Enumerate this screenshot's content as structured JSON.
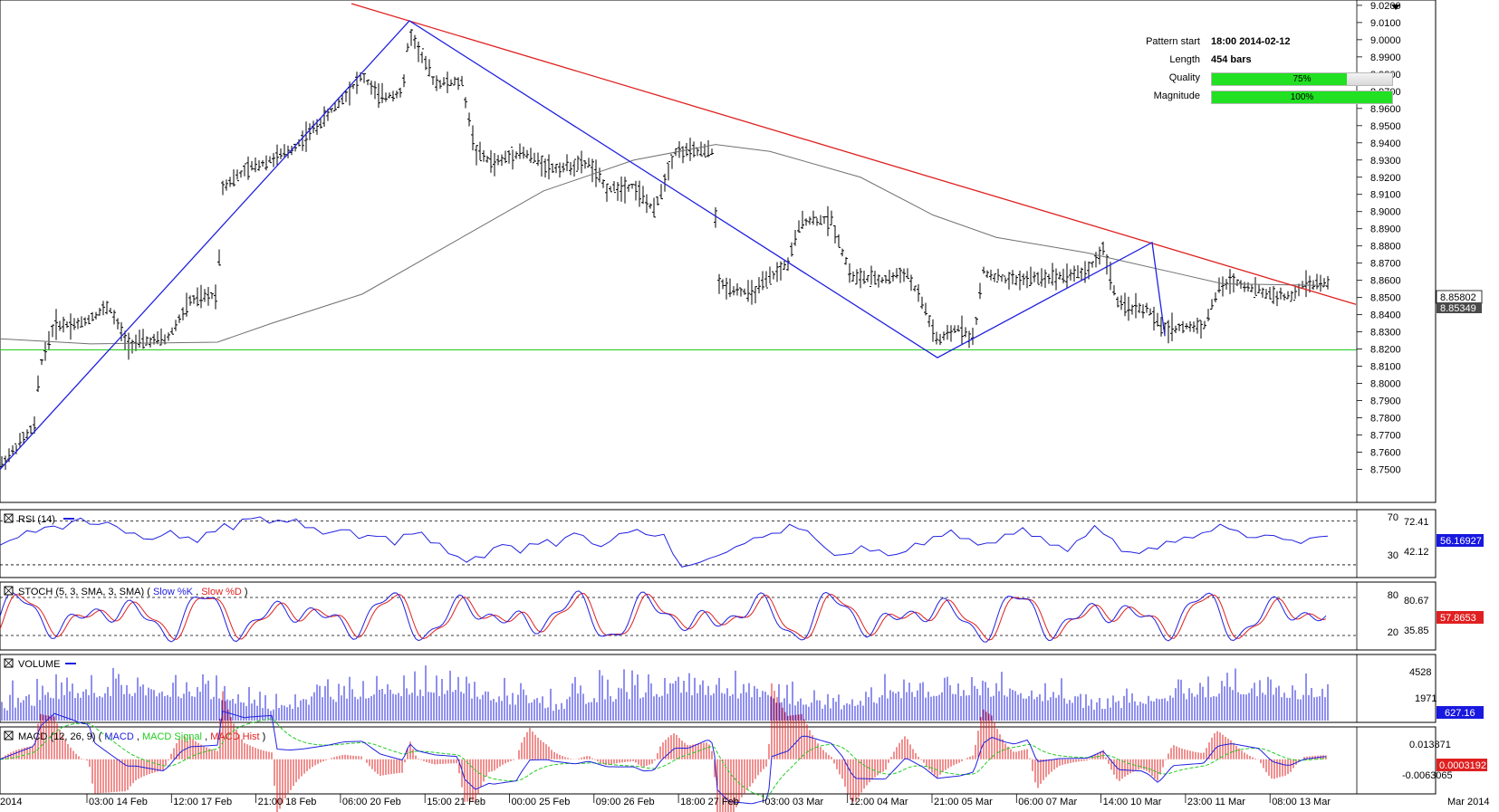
{
  "pattern_info": {
    "start_label": "Pattern start",
    "start_value": "18:00 2014-02-12",
    "length_label": "Length",
    "length_value": "454 bars",
    "quality_label": "Quality",
    "quality_pct": 75,
    "quality_text": "75%",
    "magnitude_label": "Magnitude",
    "magnitude_pct": 100,
    "magnitude_text": "100%"
  },
  "colors": {
    "bars": "#000000",
    "pattern_line": "#2020e0",
    "resistance_line": "#e02020",
    "support_line": "#22cc22",
    "moving_average": "#707070",
    "rsi": "#2020e0",
    "stoch_k": "#2020e0",
    "stoch_d": "#e02020",
    "volume": "#2020e0",
    "macd": "#2020e0",
    "macd_signal": "#22cc22",
    "macd_hist": "#e02020",
    "value_box": "#1818e0"
  },
  "chart_data": [
    {
      "panel": "price",
      "type": "ohlc",
      "ylim": [
        8.745,
        9.021
      ],
      "y_ticks": [
        "9.0200",
        "9.0100",
        "9.0000",
        "8.9900",
        "8.9800",
        "8.9700",
        "8.9600",
        "8.9500",
        "8.9400",
        "8.9300",
        "8.9200",
        "8.9100",
        "8.9000",
        "8.8900",
        "8.8800",
        "8.8700",
        "8.8600",
        "8.8500",
        "8.8400",
        "8.8300",
        "8.8200",
        "8.8100",
        "8.8000",
        "8.7900",
        "8.7800",
        "8.7700",
        "8.7600",
        "8.7500"
      ],
      "x_tick_labels": [
        "2014",
        "03:00 14 Feb",
        "12:00 17 Feb",
        "21:00 18 Feb",
        "06:00 20 Feb",
        "15:00 21 Feb",
        "00:00 25 Feb",
        "09:00 26 Feb",
        "18:00 27 Feb",
        "03:00 03 Mar",
        "12:00 04 Mar",
        "21:00 05 Mar",
        "06:00 07 Mar",
        "14:00 10 Mar",
        "23:00 11 Mar",
        "08:00 13 Mar",
        "Mar 2014"
      ],
      "current_price": "8.85802",
      "current_price_2": "8.85349",
      "price_path": [
        [
          0,
          8.752
        ],
        [
          38,
          8.775
        ],
        [
          44,
          8.81
        ],
        [
          60,
          8.834
        ],
        [
          90,
          8.835
        ],
        [
          120,
          8.845
        ],
        [
          140,
          8.823
        ],
        [
          185,
          8.826
        ],
        [
          210,
          8.848
        ],
        [
          240,
          8.852
        ],
        [
          246,
          8.915
        ],
        [
          275,
          8.925
        ],
        [
          320,
          8.935
        ],
        [
          360,
          8.955
        ],
        [
          400,
          8.979
        ],
        [
          420,
          8.966
        ],
        [
          445,
          8.97
        ],
        [
          452,
          9.005
        ],
        [
          480,
          8.975
        ],
        [
          510,
          8.975
        ],
        [
          525,
          8.935
        ],
        [
          545,
          8.928
        ],
        [
          575,
          8.935
        ],
        [
          610,
          8.925
        ],
        [
          650,
          8.928
        ],
        [
          670,
          8.913
        ],
        [
          700,
          8.915
        ],
        [
          722,
          8.9
        ],
        [
          745,
          8.935
        ],
        [
          788,
          8.935
        ],
        [
          792,
          8.858
        ],
        [
          830,
          8.852
        ],
        [
          870,
          8.87
        ],
        [
          885,
          8.895
        ],
        [
          918,
          8.895
        ],
        [
          940,
          8.862
        ],
        [
          975,
          8.86
        ],
        [
          1000,
          8.865
        ],
        [
          1020,
          8.845
        ],
        [
          1035,
          8.824
        ],
        [
          1060,
          8.833
        ],
        [
          1075,
          8.825
        ],
        [
          1085,
          8.865
        ],
        [
          1110,
          8.86
        ],
        [
          1160,
          8.862
        ],
        [
          1200,
          8.865
        ],
        [
          1218,
          8.878
        ],
        [
          1235,
          8.845
        ],
        [
          1268,
          8.843
        ],
        [
          1282,
          8.832
        ],
        [
          1295,
          8.832
        ],
        [
          1330,
          8.834
        ],
        [
          1345,
          8.855
        ],
        [
          1360,
          8.86
        ],
        [
          1400,
          8.852
        ],
        [
          1425,
          8.85
        ],
        [
          1440,
          8.858
        ],
        [
          1465,
          8.858
        ]
      ],
      "pattern_zigzag": [
        [
          0,
          8.75
        ],
        [
          452,
          9.011
        ],
        [
          1035,
          8.815
        ],
        [
          1272,
          8.882
        ],
        [
          1286,
          8.828
        ]
      ],
      "resistance_line": [
        [
          388,
          9.021
        ],
        [
          1497,
          8.846
        ]
      ],
      "support_level": 8.8195,
      "moving_average": [
        [
          0,
          8.826
        ],
        [
          100,
          8.823
        ],
        [
          240,
          8.824
        ],
        [
          300,
          8.835
        ],
        [
          400,
          8.852
        ],
        [
          500,
          8.882
        ],
        [
          600,
          8.912
        ],
        [
          700,
          8.93
        ],
        [
          790,
          8.939
        ],
        [
          850,
          8.935
        ],
        [
          950,
          8.92
        ],
        [
          1030,
          8.898
        ],
        [
          1100,
          8.885
        ],
        [
          1200,
          8.876
        ],
        [
          1300,
          8.864
        ],
        [
          1350,
          8.858
        ],
        [
          1465,
          8.857
        ]
      ]
    },
    {
      "panel": "rsi",
      "type": "line",
      "title": "RSI (14)",
      "ylim": [
        20,
        78
      ],
      "levels": [
        30,
        70
      ],
      "level_labels": [
        "70",
        "30"
      ],
      "y_ticks": [
        "72.41",
        "42.12"
      ],
      "current": "56.16927",
      "values": [
        48,
        52,
        55,
        61,
        60,
        64,
        66,
        62,
        70,
        72,
        68,
        66,
        70,
        64,
        60,
        58,
        55,
        52,
        58,
        60,
        56,
        54,
        52,
        58,
        62,
        66,
        64,
        70,
        74,
        72,
        70,
        69,
        71,
        70,
        66,
        62,
        60,
        58,
        64,
        60,
        56,
        55,
        58,
        54,
        50,
        56,
        60,
        58,
        52,
        48,
        42,
        36,
        34,
        36,
        38,
        44,
        50,
        46,
        42,
        48,
        50,
        52,
        48,
        54,
        60,
        56,
        50,
        46,
        52,
        58,
        60,
        62,
        58,
        56,
        58,
        40,
        28,
        30,
        32,
        36,
        38,
        42,
        46,
        50,
        54,
        56,
        58,
        60,
        66,
        64,
        60,
        54,
        44,
        40,
        38,
        42,
        46,
        44,
        42,
        40,
        38,
        44,
        48,
        50,
        54,
        58,
        60,
        56,
        52,
        50,
        48,
        52,
        56,
        60,
        62,
        58,
        54,
        50,
        46,
        44,
        50,
        58,
        64,
        60,
        52,
        44,
        40,
        42,
        44,
        46,
        50,
        52,
        54,
        56,
        58,
        62,
        66,
        64,
        60,
        56,
        54,
        58,
        56,
        54,
        52,
        50,
        54,
        56,
        56
      ]
    },
    {
      "panel": "stoch",
      "type": "line",
      "title": "STOCH (5, 3, SMA, 3, SMA)",
      "series_names": [
        "Slow %K",
        "Slow %D"
      ],
      "ylim": [
        0,
        100
      ],
      "levels": [
        20,
        80
      ],
      "level_labels": [
        "80",
        "20"
      ],
      "y_ticks": [
        "80.67",
        "35.85"
      ],
      "current": "57.8653"
    },
    {
      "panel": "volume",
      "type": "bar",
      "title": "VOLUME",
      "ylim": [
        0,
        6500
      ],
      "y_ticks": [
        "4528",
        "1971"
      ],
      "current": "627.16"
    },
    {
      "panel": "macd",
      "type": "line",
      "title": "MACD (12, 26, 9)",
      "series_names": [
        "MACD",
        "MACD Signal",
        "MACD Hist"
      ],
      "ylim": [
        -0.021,
        0.019
      ],
      "y_ticks": [
        "0.013871",
        "-0.0063065"
      ],
      "current": "0.0003192"
    }
  ]
}
